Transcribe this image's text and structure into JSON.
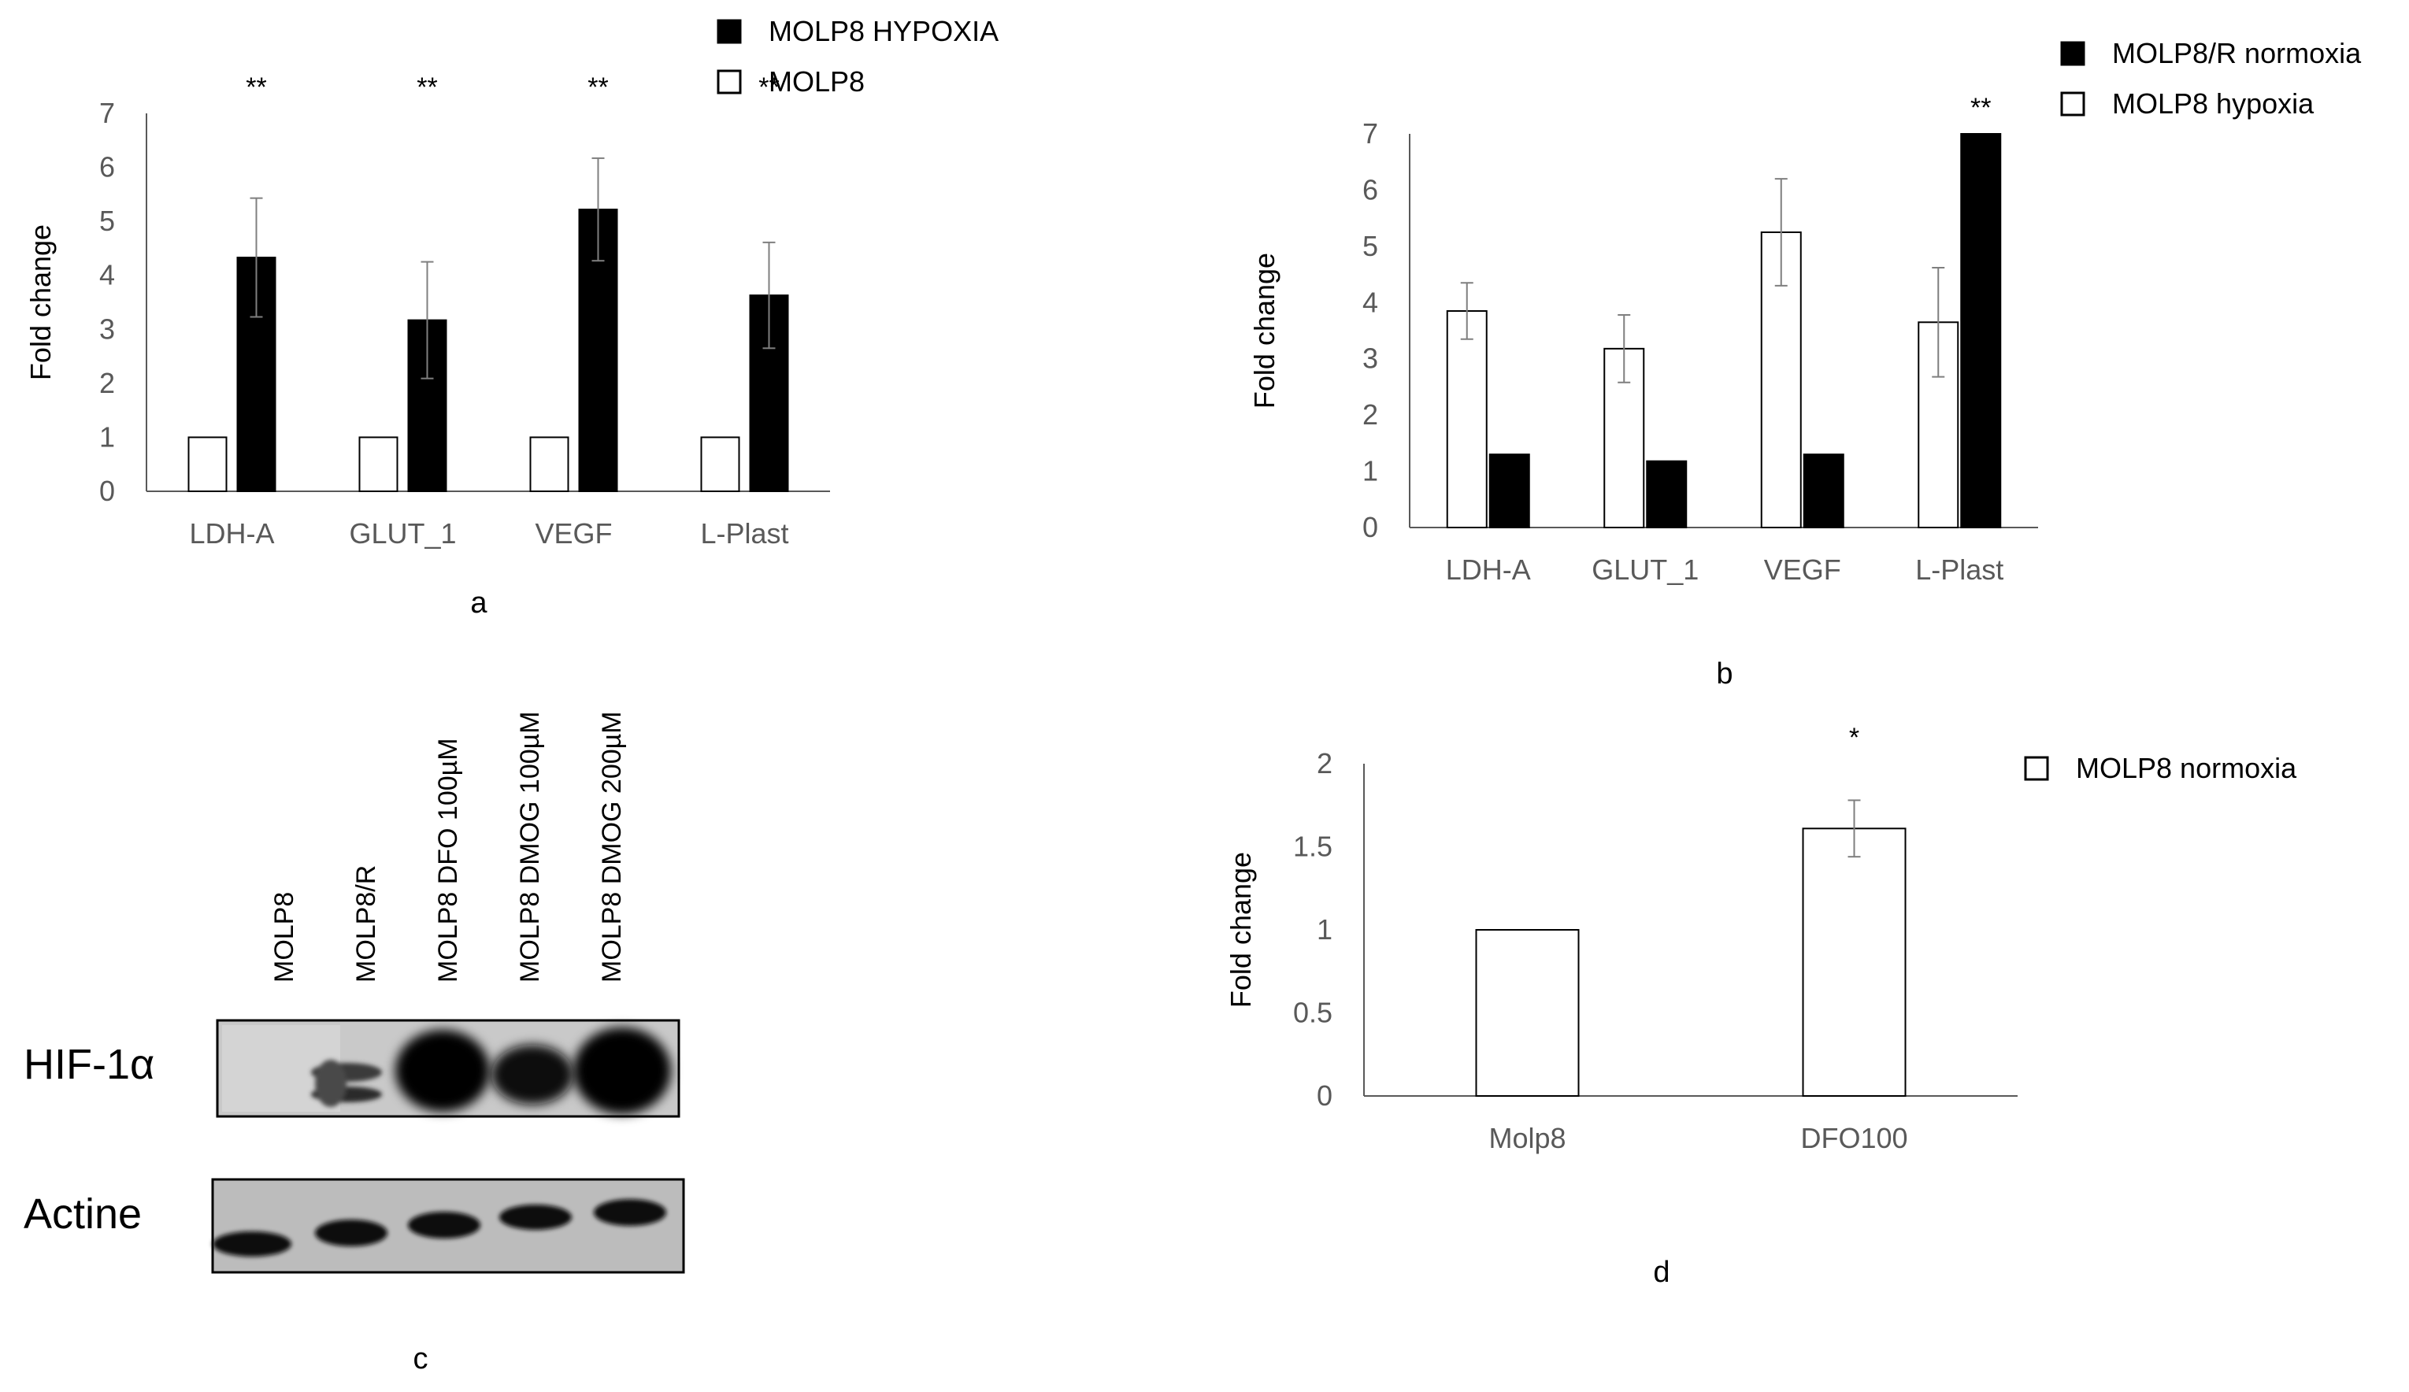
{
  "panel_letters": {
    "a": "a",
    "b": "b",
    "c": "c",
    "d": "d"
  },
  "chart_data": [
    {
      "id": "a",
      "type": "bar",
      "categories": [
        "LDH-A",
        "GLUT_1",
        "VEGF",
        "L-Plast"
      ],
      "series": [
        {
          "name": "MOLP8",
          "fill": "white",
          "values": [
            1,
            1,
            1,
            1
          ],
          "errors": [
            0,
            0,
            0,
            0
          ]
        },
        {
          "name": "MOLP8 HYPOXIA",
          "fill": "black",
          "values": [
            4.33,
            3.17,
            5.22,
            3.63
          ],
          "errors": [
            1.1,
            1.08,
            0.95,
            0.98
          ]
        }
      ],
      "significance": [
        "**",
        "**",
        "**",
        "**"
      ],
      "xlabel": "",
      "ylabel": "Fold change",
      "ylim": [
        0,
        7
      ],
      "yticks": [
        "0",
        "1",
        "2",
        "3",
        "4",
        "5",
        "6",
        "7"
      ],
      "grid": false,
      "legend": [
        "MOLP8 HYPOXIA",
        "MOLP8"
      ],
      "legend_position": "top-right"
    },
    {
      "id": "b",
      "type": "bar",
      "categories": [
        "LDH-A",
        "GLUT_1",
        "VEGF",
        "L-Plast"
      ],
      "series": [
        {
          "name": "MOLP8 hypoxia",
          "fill": "white",
          "values": [
            3.85,
            3.18,
            5.25,
            3.65
          ],
          "errors": [
            0.5,
            0.6,
            0.95,
            0.97
          ]
        },
        {
          "name": "MOLP8/R normoxia",
          "fill": "black",
          "values": [
            1.3,
            1.18,
            1.3,
            7.0
          ],
          "errors": [
            0,
            0,
            0,
            0
          ]
        }
      ],
      "significance": [
        "",
        "",
        "",
        "**"
      ],
      "xlabel": "",
      "ylabel": "Fold change",
      "ylim": [
        0,
        7
      ],
      "yticks": [
        "0",
        "1",
        "2",
        "3",
        "4",
        "5",
        "6",
        "7"
      ],
      "grid": false,
      "legend": [
        "MOLP8/R normoxia",
        "MOLP8 hypoxia"
      ],
      "legend_position": "top-right"
    },
    {
      "id": "d",
      "type": "bar",
      "categories": [
        "Molp8",
        "DFO100"
      ],
      "series": [
        {
          "name": "MOLP8 normoxia",
          "fill": "white",
          "values": [
            1.0,
            1.61
          ],
          "errors": [
            0,
            0.17
          ]
        }
      ],
      "significance": [
        "",
        "*"
      ],
      "xlabel": "",
      "ylabel": "Fold change",
      "ylim": [
        0,
        2
      ],
      "yticks": [
        "0",
        "0.5",
        "1",
        "1.5",
        "2"
      ],
      "grid": false,
      "legend": [
        "MOLP8 normoxia"
      ],
      "legend_position": "top-right"
    }
  ],
  "blot": {
    "lanes": [
      "MOLP8",
      "MOLP8/R",
      "MOLP8 DFO 100µM",
      "MOLP8 DMOG 100µM",
      "MOLP8 DMOG 200µM"
    ],
    "rows": [
      "HIF-1α",
      "Actine"
    ]
  }
}
